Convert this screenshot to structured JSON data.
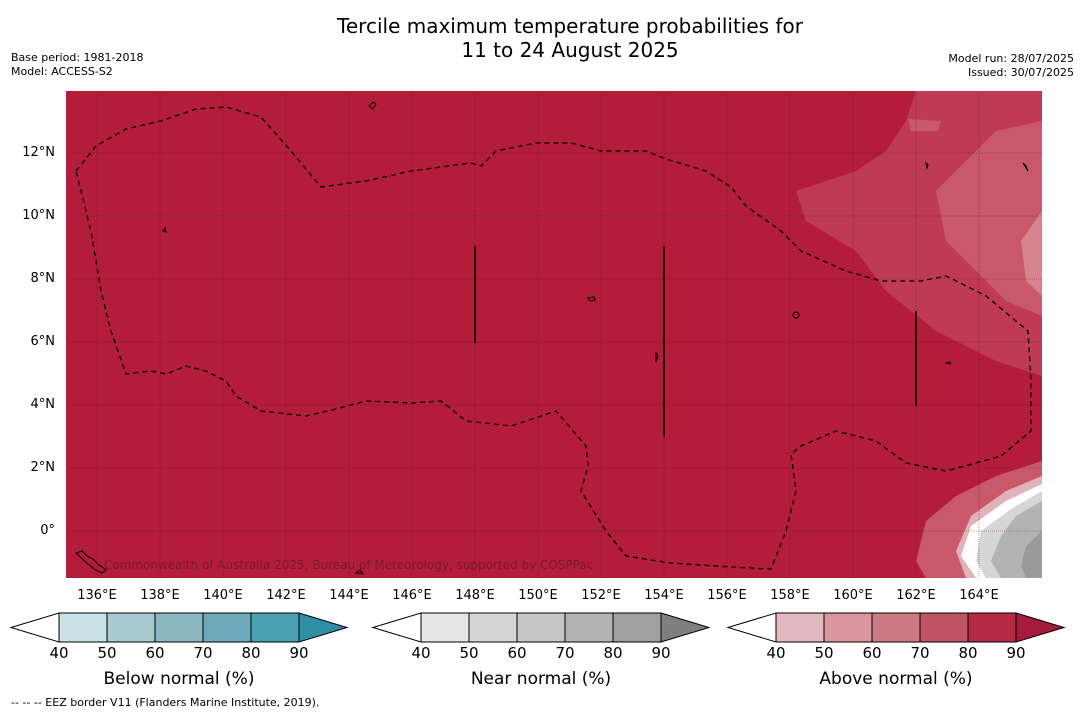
{
  "title_line1": "Tercile maximum temperature probabilities for",
  "title_line2": "11 to 24 August 2025",
  "base_period": "Base period: 1981-2018",
  "model": "Model: ACCESS-S2",
  "model_run": "Model run: 28/07/2025",
  "issued": "Issued: 30/07/2025",
  "copyright": "© Commonwealth of Australia 2025, Bureau of Meteorology, supported by COSPPac",
  "lat_labels": [
    "12°N",
    "10°N",
    "8°N",
    "6°N",
    "4°N",
    "2°N",
    "0°"
  ],
  "lon_labels": [
    "136°E",
    "138°E",
    "140°E",
    "142°E",
    "144°E",
    "146°E",
    "148°E",
    "150°E",
    "152°E",
    "154°E",
    "156°E",
    "158°E",
    "160°E",
    "162°E",
    "164°E"
  ],
  "colorbars": [
    {
      "title": "Below normal (%)",
      "ticks": [
        "40",
        "50",
        "60",
        "70",
        "80",
        "90"
      ],
      "colors": [
        "#ffffff",
        "#c9e2e8",
        "#a9c9d0",
        "#8bb7c2",
        "#6eaabb",
        "#4a9fb1",
        "#2f8ea5"
      ]
    },
    {
      "title": "Near normal (%)",
      "ticks": [
        "40",
        "50",
        "60",
        "70",
        "80",
        "90"
      ],
      "colors": [
        "#ffffff",
        "#e6e6e6",
        "#d6d6d6",
        "#c6c6c6",
        "#b3b3b3",
        "#a0a0a0",
        "#7f7f7f"
      ]
    },
    {
      "title": "Above normal (%)",
      "ticks": [
        "40",
        "50",
        "60",
        "70",
        "80",
        "90"
      ],
      "colors": [
        "#ffffff",
        "#e3b9bf",
        "#d9969f",
        "#cc7a84",
        "#c15566",
        "#b42a45",
        "#a51b3b"
      ]
    }
  ],
  "footer": "--  --  -- EEZ border V11 (Flanders Marine Institute, 2019).",
  "field_colors": {
    "dominant": "#b31d3a"
  }
}
